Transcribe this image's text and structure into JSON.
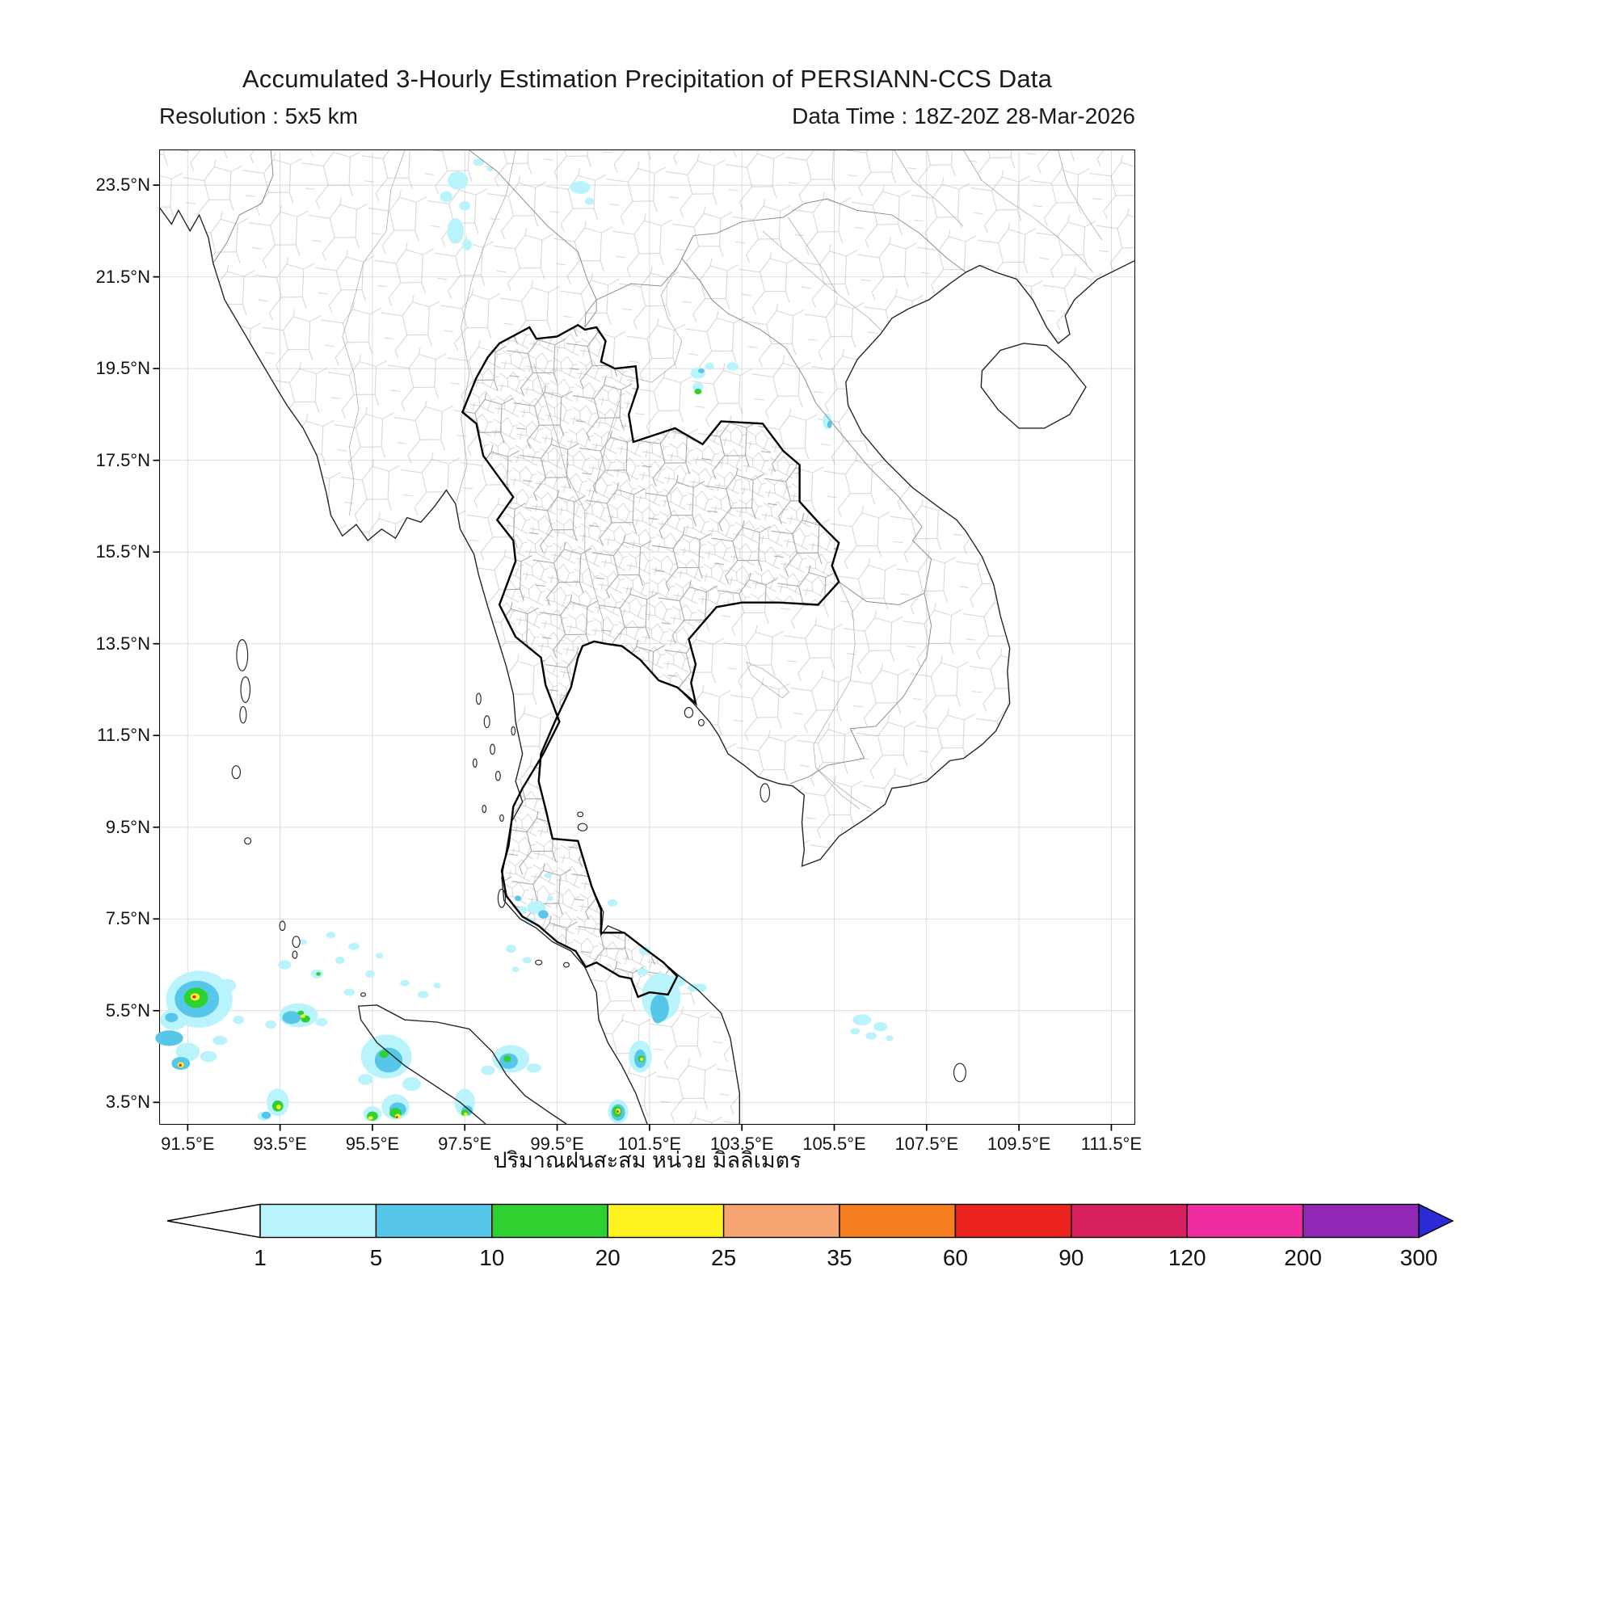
{
  "header": {
    "title": "Accumulated 3-Hourly Estimation Precipitation of PERSIANN-CCS Data",
    "resolution": "Resolution : 5x5 km",
    "data_time": "Data Time : 18Z-20Z 28-Mar-2026"
  },
  "map": {
    "lon_min": 90.9,
    "lon_max": 112.0,
    "lat_min": 3.03,
    "lat_max": 24.26,
    "grid_color": "#d8d8d8",
    "tick_color": "#000000",
    "x_ticks": [
      {
        "value": 91.5,
        "label": "91.5°E"
      },
      {
        "value": 93.5,
        "label": "93.5°E"
      },
      {
        "value": 95.5,
        "label": "95.5°E"
      },
      {
        "value": 97.5,
        "label": "97.5°E"
      },
      {
        "value": 99.5,
        "label": "99.5°E"
      },
      {
        "value": 101.5,
        "label": "101.5°E"
      },
      {
        "value": 103.5,
        "label": "103.5°E"
      },
      {
        "value": 105.5,
        "label": "105.5°E"
      },
      {
        "value": 107.5,
        "label": "107.5°E"
      },
      {
        "value": 109.5,
        "label": "109.5°E"
      },
      {
        "value": 111.5,
        "label": "111.5°E"
      }
    ],
    "y_ticks": [
      {
        "value": 23.5,
        "label": "23.5°N"
      },
      {
        "value": 21.5,
        "label": "21.5°N"
      },
      {
        "value": 19.5,
        "label": "19.5°N"
      },
      {
        "value": 17.5,
        "label": "17.5°N"
      },
      {
        "value": 15.5,
        "label": "15.5°N"
      },
      {
        "value": 13.5,
        "label": "13.5°N"
      },
      {
        "value": 11.5,
        "label": "11.5°N"
      },
      {
        "value": 9.5,
        "label": "9.5°N"
      },
      {
        "value": 7.5,
        "label": "7.5°N"
      },
      {
        "value": 5.5,
        "label": "5.5°N"
      },
      {
        "value": 3.5,
        "label": "3.5°N"
      }
    ]
  },
  "colorbar": {
    "caption": "ปริมาณฝนสะสม หน่วย มิลลิเมตร",
    "ticks": [
      "1",
      "5",
      "10",
      "20",
      "25",
      "35",
      "60",
      "90",
      "120",
      "200",
      "300"
    ],
    "segment_colors": [
      "#b9f3fb",
      "#56c6e9",
      "#2ed130",
      "#fef31e",
      "#f6a571",
      "#f57e20",
      "#eb2420",
      "#d6205f",
      "#ef2da0",
      "#9128b5"
    ],
    "under_color": "#ffffff",
    "over_color": "#2b2bd5",
    "border_color": "#000000"
  },
  "precipitation": {
    "unit": "mm",
    "level_colors": {
      "1": "#b9f3fb",
      "5": "#56c6e9",
      "10": "#2ed130",
      "20": "#fef31e",
      "60": "#eb2420"
    },
    "cells": [
      {
        "level": "1",
        "points": [
          [
            97.8,
            24.0,
            0.12,
            0.08
          ],
          [
            98.05,
            23.85,
            0.07,
            0.05
          ],
          [
            97.35,
            23.6,
            0.22,
            0.2
          ],
          [
            97.1,
            23.25,
            0.13,
            0.12
          ],
          [
            97.5,
            23.05,
            0.12,
            0.1
          ],
          [
            97.3,
            22.5,
            0.18,
            0.28
          ],
          [
            97.55,
            22.2,
            0.1,
            0.12
          ],
          [
            100.0,
            23.45,
            0.22,
            0.14
          ],
          [
            100.2,
            23.15,
            0.1,
            0.08
          ],
          [
            102.55,
            19.4,
            0.16,
            0.12
          ],
          [
            102.8,
            19.55,
            0.1,
            0.08
          ],
          [
            103.3,
            19.55,
            0.13,
            0.09
          ],
          [
            102.55,
            19.1,
            0.12,
            0.1
          ],
          [
            105.35,
            18.35,
            0.1,
            0.17
          ],
          [
            99.05,
            7.75,
            0.2,
            0.14
          ],
          [
            98.75,
            7.7,
            0.1,
            0.08
          ],
          [
            98.9,
            7.45,
            0.11,
            0.08
          ],
          [
            99.35,
            7.95,
            0.07,
            0.06
          ],
          [
            99.3,
            8.45,
            0.08,
            0.06
          ],
          [
            100.7,
            7.85,
            0.11,
            0.08
          ],
          [
            98.5,
            6.85,
            0.11,
            0.09
          ],
          [
            98.85,
            6.6,
            0.1,
            0.07
          ],
          [
            98.6,
            6.4,
            0.08,
            0.06
          ],
          [
            101.4,
            6.8,
            0.13,
            0.09
          ],
          [
            91.75,
            5.75,
            0.72,
            0.62
          ],
          [
            92.35,
            6.05,
            0.2,
            0.14
          ],
          [
            91.2,
            5.3,
            0.3,
            0.22
          ],
          [
            91.5,
            4.6,
            0.26,
            0.2
          ],
          [
            91.95,
            4.5,
            0.18,
            0.12
          ],
          [
            92.2,
            4.85,
            0.16,
            0.1
          ],
          [
            92.6,
            5.3,
            0.12,
            0.09
          ],
          [
            93.9,
            5.4,
            0.42,
            0.26
          ],
          [
            94.4,
            5.25,
            0.13,
            0.09
          ],
          [
            93.3,
            5.2,
            0.12,
            0.09
          ],
          [
            93.6,
            6.5,
            0.14,
            0.1
          ],
          [
            94.3,
            6.3,
            0.13,
            0.1
          ],
          [
            94.8,
            6.6,
            0.1,
            0.08
          ],
          [
            95.1,
            6.9,
            0.12,
            0.08
          ],
          [
            94.6,
            7.15,
            0.1,
            0.07
          ],
          [
            95.45,
            6.3,
            0.1,
            0.08
          ],
          [
            94.0,
            7.0,
            0.08,
            0.06
          ],
          [
            95.0,
            5.9,
            0.12,
            0.08
          ],
          [
            95.65,
            6.7,
            0.08,
            0.06
          ],
          [
            96.2,
            6.1,
            0.1,
            0.07
          ],
          [
            96.6,
            5.85,
            0.12,
            0.08
          ],
          [
            96.9,
            6.05,
            0.08,
            0.06
          ],
          [
            95.8,
            4.5,
            0.55,
            0.48
          ],
          [
            96.35,
            3.9,
            0.2,
            0.15
          ],
          [
            95.35,
            4.0,
            0.16,
            0.12
          ],
          [
            96.0,
            3.4,
            0.3,
            0.28
          ],
          [
            95.5,
            3.25,
            0.2,
            0.16
          ],
          [
            93.45,
            3.5,
            0.24,
            0.3
          ],
          [
            93.15,
            3.2,
            0.14,
            0.1
          ],
          [
            97.5,
            3.5,
            0.22,
            0.3
          ],
          [
            98.5,
            4.45,
            0.4,
            0.3
          ],
          [
            99.0,
            4.25,
            0.16,
            0.1
          ],
          [
            98.0,
            4.2,
            0.15,
            0.1
          ],
          [
            101.75,
            5.8,
            0.42,
            0.52
          ],
          [
            102.1,
            6.15,
            0.2,
            0.13
          ],
          [
            102.45,
            6.0,
            0.12,
            0.09
          ],
          [
            101.35,
            6.35,
            0.12,
            0.08
          ],
          [
            102.6,
            6.0,
            0.14,
            0.09
          ],
          [
            101.3,
            4.5,
            0.25,
            0.35
          ],
          [
            100.82,
            3.3,
            0.22,
            0.26
          ],
          [
            106.1,
            5.3,
            0.2,
            0.12
          ],
          [
            106.5,
            5.15,
            0.15,
            0.1
          ],
          [
            106.3,
            4.95,
            0.12,
            0.08
          ],
          [
            105.95,
            5.05,
            0.1,
            0.07
          ],
          [
            106.7,
            4.9,
            0.08,
            0.06
          ]
        ]
      },
      {
        "level": "5",
        "points": [
          [
            102.62,
            19.45,
            0.07,
            0.05
          ],
          [
            105.4,
            18.28,
            0.05,
            0.08
          ],
          [
            99.2,
            7.6,
            0.11,
            0.09
          ],
          [
            98.65,
            7.95,
            0.07,
            0.06
          ],
          [
            91.7,
            5.75,
            0.48,
            0.4
          ],
          [
            91.1,
            4.9,
            0.3,
            0.17
          ],
          [
            91.35,
            4.35,
            0.2,
            0.14
          ],
          [
            91.15,
            5.35,
            0.14,
            0.1
          ],
          [
            93.75,
            5.35,
            0.2,
            0.14
          ],
          [
            95.85,
            4.42,
            0.3,
            0.27
          ],
          [
            96.05,
            3.35,
            0.18,
            0.15
          ],
          [
            97.55,
            3.32,
            0.12,
            0.11
          ],
          [
            98.45,
            4.4,
            0.2,
            0.17
          ],
          [
            101.72,
            5.55,
            0.2,
            0.3
          ],
          [
            101.68,
            5.38,
            0.12,
            0.16
          ],
          [
            101.3,
            4.45,
            0.13,
            0.2
          ],
          [
            100.82,
            3.28,
            0.15,
            0.18
          ],
          [
            93.2,
            3.22,
            0.1,
            0.08
          ]
        ]
      },
      {
        "level": "10",
        "points": [
          [
            91.68,
            5.78,
            0.26,
            0.22
          ],
          [
            102.55,
            19.0,
            0.08,
            0.06
          ],
          [
            94.05,
            5.32,
            0.1,
            0.08
          ],
          [
            93.95,
            5.45,
            0.07,
            0.05
          ],
          [
            94.33,
            6.3,
            0.05,
            0.04
          ],
          [
            95.75,
            4.55,
            0.1,
            0.08
          ],
          [
            96.0,
            3.27,
            0.13,
            0.11
          ],
          [
            95.5,
            3.2,
            0.12,
            0.1
          ],
          [
            93.45,
            3.42,
            0.12,
            0.12
          ],
          [
            97.5,
            3.27,
            0.08,
            0.07
          ],
          [
            98.42,
            4.45,
            0.08,
            0.07
          ],
          [
            101.32,
            4.45,
            0.07,
            0.07
          ],
          [
            100.8,
            3.3,
            0.1,
            0.12
          ]
        ]
      },
      {
        "level": "20",
        "points": [
          [
            91.66,
            5.8,
            0.1,
            0.08
          ],
          [
            94.0,
            5.38,
            0.045,
            0.04
          ],
          [
            96.05,
            3.2,
            0.06,
            0.05
          ],
          [
            95.46,
            3.16,
            0.05,
            0.04
          ],
          [
            93.47,
            3.4,
            0.05,
            0.05
          ],
          [
            97.52,
            3.24,
            0.04,
            0.04
          ],
          [
            101.33,
            4.44,
            0.035,
            0.035
          ],
          [
            100.82,
            3.31,
            0.05,
            0.06
          ],
          [
            91.35,
            4.32,
            0.07,
            0.06
          ]
        ]
      },
      {
        "level": "60",
        "points": [
          [
            91.64,
            5.8,
            0.04,
            0.035
          ],
          [
            91.34,
            4.31,
            0.03,
            0.03
          ],
          [
            100.81,
            3.3,
            0.025,
            0.028
          ],
          [
            96.03,
            3.18,
            0.025,
            0.025
          ]
        ]
      }
    ]
  }
}
